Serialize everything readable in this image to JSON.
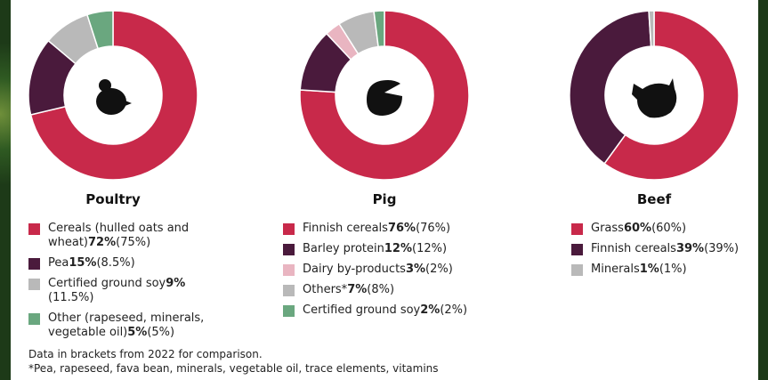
{
  "chart_data": [
    {
      "type": "donut",
      "title": "Poultry",
      "categories": [
        "Cereals (hulled oats and wheat)",
        "Pea",
        "Certified ground soy",
        "Other (rapeseed, minerals, vegetable oil)"
      ],
      "values": [
        72,
        15,
        9,
        5
      ],
      "value_labels": [
        "72%",
        "15%",
        "9%",
        "5%"
      ],
      "previous_labels": [
        "(75%)",
        "(8.5%)",
        "(11.5%)",
        "(5%)"
      ],
      "colors": [
        "#c8294a",
        "#4a1a3c",
        "#b9b9b9",
        "#6aa77f"
      ]
    },
    {
      "type": "donut",
      "title": "Pig",
      "categories": [
        "Finnish cereals",
        "Barley protein",
        "Dairy by-products",
        "Others*",
        "Certified ground soy"
      ],
      "values": [
        76,
        12,
        3,
        7,
        2
      ],
      "value_labels": [
        "76%",
        "12%",
        "3%",
        "7%",
        "2%"
      ],
      "previous_labels": [
        "(76%)",
        "(12%)",
        "(2%)",
        "(8%)",
        "(2%)"
      ],
      "colors": [
        "#c8294a",
        "#4a1a3c",
        "#e9b5c1",
        "#b9b9b9",
        "#6aa77f"
      ]
    },
    {
      "type": "donut",
      "title": "Beef",
      "categories": [
        "Grass",
        "Finnish cereals",
        "Minerals"
      ],
      "values": [
        60,
        39,
        1
      ],
      "value_labels": [
        "60%",
        "39%",
        "1%"
      ],
      "previous_labels": [
        "(60%)",
        "(39%)",
        "(1%)"
      ],
      "colors": [
        "#c8294a",
        "#4a1a3c",
        "#b9b9b9"
      ]
    }
  ],
  "notes": [
    "Data in brackets from 2022 for comparison.",
    "*Pea, rapeseed, fava bean, minerals, vegetable oil, trace elements, vitamins"
  ]
}
